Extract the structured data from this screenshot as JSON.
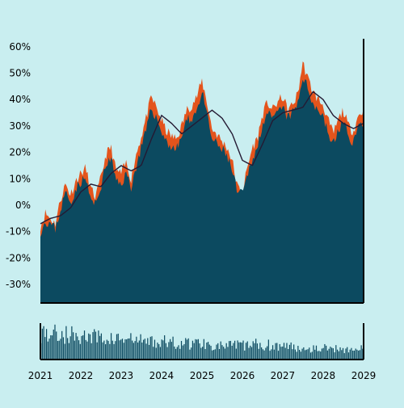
{
  "chart_data": [
    {
      "type": "area",
      "title": "",
      "xlabel": "",
      "ylabel": "",
      "y_unit": "percent",
      "ylim": [
        -37,
        63
      ],
      "yticks": [
        -30,
        -20,
        -10,
        0,
        10,
        20,
        30,
        40,
        50,
        60
      ],
      "ytick_labels": [
        "-30%",
        "-20%",
        "-10%",
        "0%",
        "10%",
        "20%",
        "30%",
        "40%",
        "50%",
        "60%"
      ],
      "xlim": [
        "2021-01-01",
        "2029-01-01"
      ],
      "xticks": [
        "2021-01-01",
        "2022-01-01",
        "2023-01-01",
        "2024-01-01",
        "2025-01-01",
        "2026-01-01",
        "2027-01-01",
        "2028-01-01",
        "2029-01-01"
      ],
      "xtick_labels": [
        "2021",
        "2022",
        "2023",
        "2024",
        "2025",
        "2026",
        "2027",
        "2028",
        "2029"
      ],
      "grid": false,
      "series": [
        {
          "role": "high-range",
          "color": "#e4541c",
          "x": [
            "2021-01-01",
            "2021-02-15",
            "2021-04-01",
            "2021-05-15",
            "2021-07-01",
            "2021-08-15",
            "2021-10-01",
            "2021-11-15",
            "2022-01-01",
            "2022-02-15",
            "2022-04-01",
            "2022-05-15",
            "2022-07-01",
            "2022-08-15",
            "2022-10-01",
            "2022-11-15",
            "2023-01-01",
            "2023-02-15",
            "2023-04-01",
            "2023-05-15",
            "2023-07-01",
            "2023-08-15",
            "2023-10-01",
            "2023-11-15",
            "2024-01-01",
            "2024-02-15",
            "2024-04-01",
            "2024-05-15",
            "2024-07-01",
            "2024-08-15",
            "2024-10-01",
            "2024-11-15",
            "2025-01-01",
            "2025-02-15",
            "2025-04-01",
            "2025-05-15",
            "2025-07-01",
            "2025-08-15",
            "2025-10-01",
            "2025-11-15",
            "2026-01-01",
            "2026-02-15",
            "2026-04-01",
            "2026-05-15",
            "2026-07-01",
            "2026-08-15",
            "2026-10-01",
            "2026-11-15",
            "2027-01-01",
            "2027-02-15",
            "2027-04-01",
            "2027-05-15",
            "2027-07-01",
            "2027-08-15",
            "2027-10-01",
            "2027-11-15",
            "2028-01-01",
            "2028-02-15",
            "2028-04-01",
            "2028-05-15",
            "2028-07-01",
            "2028-08-15",
            "2028-10-01",
            "2028-11-15",
            "2029-01-01"
          ],
          "values": [
            -8,
            -3,
            -5,
            -7,
            2,
            8,
            4,
            9,
            12,
            14,
            6,
            3,
            10,
            19,
            22,
            13,
            12,
            16,
            10,
            19,
            26,
            33,
            41,
            37,
            32,
            28,
            26,
            25,
            30,
            36,
            38,
            41,
            47,
            39,
            29,
            27,
            24,
            22,
            17,
            7,
            5,
            14,
            22,
            25,
            34,
            39,
            36,
            39,
            41,
            36,
            38,
            42,
            54,
            48,
            43,
            40,
            38,
            32,
            27,
            32,
            36,
            30,
            28,
            34,
            36
          ]
        },
        {
          "role": "close",
          "color": "#0c4a60",
          "x": [
            "2021-01-01",
            "2021-02-15",
            "2021-04-01",
            "2021-05-15",
            "2021-07-01",
            "2021-08-15",
            "2021-10-01",
            "2021-11-15",
            "2022-01-01",
            "2022-02-15",
            "2022-04-01",
            "2022-05-15",
            "2022-07-01",
            "2022-08-15",
            "2022-10-01",
            "2022-11-15",
            "2023-01-01",
            "2023-02-15",
            "2023-04-01",
            "2023-05-15",
            "2023-07-01",
            "2023-08-15",
            "2023-10-01",
            "2023-11-15",
            "2024-01-01",
            "2024-02-15",
            "2024-04-01",
            "2024-05-15",
            "2024-07-01",
            "2024-08-15",
            "2024-10-01",
            "2024-11-15",
            "2025-01-01",
            "2025-02-15",
            "2025-04-01",
            "2025-05-15",
            "2025-07-01",
            "2025-08-15",
            "2025-10-01",
            "2025-11-15",
            "2026-01-01",
            "2026-02-15",
            "2026-04-01",
            "2026-05-15",
            "2026-07-01",
            "2026-08-15",
            "2026-10-01",
            "2026-11-15",
            "2027-01-01",
            "2027-02-15",
            "2027-04-01",
            "2027-05-15",
            "2027-07-01",
            "2027-08-15",
            "2027-10-01",
            "2027-11-15",
            "2028-01-01",
            "2028-02-15",
            "2028-04-01",
            "2028-05-15",
            "2028-07-01",
            "2028-08-15",
            "2028-10-01",
            "2028-11-15",
            "2029-01-01"
          ],
          "values": [
            -10,
            -6,
            -7,
            -9,
            -2,
            5,
            1,
            6,
            9,
            10,
            2,
            0,
            7,
            15,
            18,
            9,
            8,
            12,
            7,
            14,
            22,
            28,
            37,
            33,
            28,
            24,
            22,
            21,
            26,
            32,
            33,
            36,
            43,
            34,
            25,
            23,
            21,
            19,
            13,
            5,
            4,
            11,
            18,
            21,
            31,
            35,
            32,
            35,
            37,
            33,
            35,
            38,
            49,
            44,
            39,
            36,
            34,
            27,
            23,
            28,
            32,
            26,
            24,
            30,
            31
          ]
        },
        {
          "role": "moving-average",
          "color": "#241a33",
          "x": [
            "2021-01-01",
            "2021-04-01",
            "2021-07-01",
            "2021-10-01",
            "2022-01-01",
            "2022-04-01",
            "2022-07-01",
            "2022-10-01",
            "2023-01-01",
            "2023-04-01",
            "2023-07-01",
            "2023-10-01",
            "2024-01-01",
            "2024-04-01",
            "2024-07-01",
            "2024-10-01",
            "2025-01-01",
            "2025-04-01",
            "2025-07-01",
            "2025-10-01",
            "2026-01-01",
            "2026-04-01",
            "2026-07-01",
            "2026-10-01",
            "2027-01-01",
            "2027-04-01",
            "2027-07-01",
            "2027-10-01",
            "2028-01-01",
            "2028-04-01",
            "2028-07-01",
            "2028-10-01",
            "2029-01-01"
          ],
          "values": [
            -7,
            -5,
            -4,
            -1,
            5,
            8,
            7,
            12,
            15,
            13,
            15,
            25,
            34,
            31,
            27,
            30,
            33,
            36,
            33,
            27,
            17,
            15,
            23,
            32,
            35,
            36,
            37,
            43,
            40,
            34,
            31,
            29,
            31
          ]
        }
      ]
    },
    {
      "type": "bar",
      "role": "volume",
      "color": "#0c4a60",
      "xlim": [
        "2021-01-01",
        "2029-01-01"
      ],
      "envelope_x": [
        "2021-01-01",
        "2021-07-01",
        "2022-01-01",
        "2022-07-01",
        "2023-01-01",
        "2023-07-01",
        "2024-01-01",
        "2024-07-01",
        "2025-01-01",
        "2025-07-01",
        "2026-01-01",
        "2026-07-01",
        "2027-01-01",
        "2027-07-01",
        "2028-01-01",
        "2028-07-01",
        "2029-01-01"
      ],
      "envelope_values": [
        0.82,
        0.76,
        0.7,
        0.64,
        0.6,
        0.56,
        0.52,
        0.48,
        0.5,
        0.4,
        0.42,
        0.45,
        0.4,
        0.35,
        0.34,
        0.32,
        0.3
      ]
    }
  ]
}
